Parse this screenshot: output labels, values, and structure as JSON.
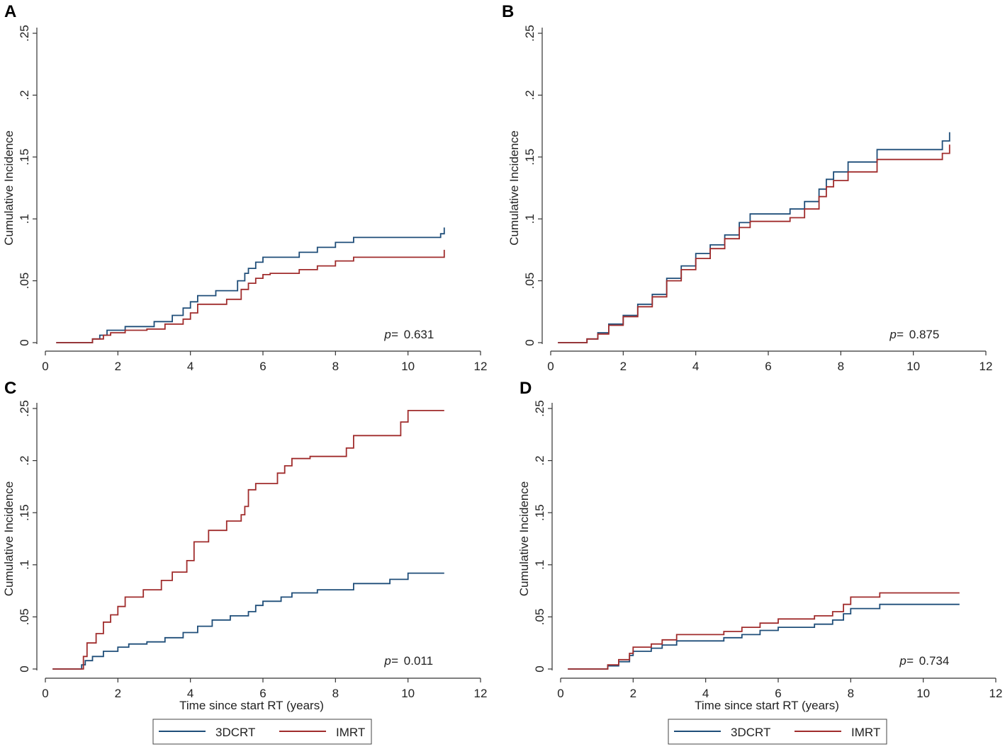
{
  "chart_data": [
    {
      "type": "line",
      "panel": "A",
      "ylabel": "Cumulative Incidence",
      "xlabel": "",
      "xlim": [
        0,
        12
      ],
      "ylim": [
        0,
        0.25
      ],
      "xticks": [
        "0",
        "2",
        "4",
        "6",
        "8",
        "10",
        "12"
      ],
      "yticks": [
        "0",
        ".05",
        ".1",
        ".15",
        ".2",
        ".25"
      ],
      "p_label": "p=",
      "p_value": "0.631",
      "legend": false,
      "series": [
        {
          "name": "3DCRT",
          "color": "#1f4e79",
          "x": [
            0.3,
            1.3,
            1.5,
            1.7,
            2.2,
            2.6,
            3.0,
            3.5,
            3.8,
            4.0,
            4.2,
            4.7,
            5.3,
            5.5,
            5.6,
            5.8,
            6.0,
            6.5,
            7.0,
            7.5,
            8.0,
            8.5,
            9.0,
            10.5,
            10.9,
            11.0
          ],
          "y": [
            0,
            0.003,
            0.006,
            0.01,
            0.013,
            0.013,
            0.017,
            0.022,
            0.028,
            0.033,
            0.038,
            0.042,
            0.05,
            0.056,
            0.06,
            0.065,
            0.069,
            0.069,
            0.073,
            0.077,
            0.081,
            0.085,
            0.085,
            0.085,
            0.088,
            0.093
          ]
        },
        {
          "name": "IMRT",
          "color": "#a02c2c",
          "x": [
            0.3,
            1.3,
            1.6,
            1.8,
            2.2,
            2.8,
            3.3,
            3.8,
            4.0,
            4.2,
            5.0,
            5.4,
            5.6,
            5.8,
            6.0,
            6.2,
            7.0,
            7.5,
            8.0,
            8.5,
            9.0,
            10.9,
            11.0
          ],
          "y": [
            0,
            0.003,
            0.006,
            0.008,
            0.01,
            0.011,
            0.015,
            0.019,
            0.024,
            0.031,
            0.035,
            0.043,
            0.048,
            0.052,
            0.055,
            0.056,
            0.059,
            0.062,
            0.066,
            0.069,
            0.069,
            0.069,
            0.075
          ]
        }
      ]
    },
    {
      "type": "line",
      "panel": "B",
      "ylabel": "Cumulative Incidence",
      "xlabel": "",
      "xlim": [
        0,
        12
      ],
      "ylim": [
        0,
        0.25
      ],
      "xticks": [
        "0",
        "2",
        "4",
        "6",
        "8",
        "10",
        "12"
      ],
      "yticks": [
        "0",
        ".05",
        ".1",
        ".15",
        ".2",
        ".25"
      ],
      "p_label": "p=",
      "p_value": "0.875",
      "legend": false,
      "series": [
        {
          "name": "3DCRT",
          "color": "#1f4e79",
          "x": [
            0.2,
            1.0,
            1.3,
            1.6,
            2.0,
            2.4,
            2.8,
            3.2,
            3.6,
            4.0,
            4.4,
            4.8,
            5.2,
            5.5,
            6.0,
            6.6,
            7.0,
            7.4,
            7.6,
            7.8,
            8.2,
            9.0,
            9.5,
            10.8,
            11.0
          ],
          "y": [
            0,
            0.003,
            0.008,
            0.015,
            0.022,
            0.031,
            0.039,
            0.052,
            0.062,
            0.072,
            0.079,
            0.087,
            0.097,
            0.104,
            0.104,
            0.108,
            0.114,
            0.124,
            0.132,
            0.138,
            0.146,
            0.156,
            0.156,
            0.163,
            0.17
          ]
        },
        {
          "name": "IMRT",
          "color": "#a02c2c",
          "x": [
            0.2,
            1.0,
            1.3,
            1.6,
            2.0,
            2.4,
            2.8,
            3.2,
            3.6,
            4.0,
            4.4,
            4.8,
            5.2,
            5.5,
            6.0,
            6.6,
            7.0,
            7.4,
            7.6,
            7.8,
            8.2,
            9.0,
            9.5,
            10.8,
            11.0
          ],
          "y": [
            0,
            0.003,
            0.007,
            0.014,
            0.021,
            0.029,
            0.037,
            0.05,
            0.059,
            0.068,
            0.076,
            0.084,
            0.093,
            0.098,
            0.098,
            0.101,
            0.108,
            0.118,
            0.126,
            0.131,
            0.138,
            0.148,
            0.148,
            0.153,
            0.16
          ]
        }
      ]
    },
    {
      "type": "line",
      "panel": "C",
      "ylabel": "Cumulative Incidence",
      "xlabel": "Time since start RT (years)",
      "xlim": [
        0,
        12
      ],
      "ylim": [
        0,
        0.25
      ],
      "xticks": [
        "0",
        "2",
        "4",
        "6",
        "8",
        "10",
        "12"
      ],
      "yticks": [
        "0",
        ".05",
        ".1",
        ".15",
        ".2",
        ".25"
      ],
      "p_label": "p=",
      "p_value": "0.011",
      "legend": true,
      "series": [
        {
          "name": "3DCRT",
          "color": "#1f4e79",
          "x": [
            0.2,
            1.0,
            1.1,
            1.3,
            1.6,
            2.0,
            2.3,
            2.8,
            3.3,
            3.8,
            4.2,
            4.6,
            5.1,
            5.6,
            5.8,
            6.0,
            6.5,
            6.8,
            7.5,
            8.5,
            9.5,
            10.0,
            11.0
          ],
          "y": [
            0,
            0.004,
            0.008,
            0.012,
            0.017,
            0.021,
            0.024,
            0.026,
            0.03,
            0.035,
            0.041,
            0.047,
            0.051,
            0.055,
            0.061,
            0.065,
            0.069,
            0.073,
            0.076,
            0.082,
            0.086,
            0.092,
            0.092
          ]
        },
        {
          "name": "IMRT",
          "color": "#a02c2c",
          "x": [
            0.2,
            1.05,
            1.15,
            1.4,
            1.6,
            1.8,
            2.0,
            2.2,
            2.7,
            3.2,
            3.5,
            3.9,
            4.1,
            4.5,
            5.0,
            5.4,
            5.5,
            5.6,
            5.8,
            6.0,
            6.4,
            6.6,
            6.8,
            7.3,
            8.3,
            8.5,
            9.5,
            9.8,
            10.0,
            11.0
          ],
          "y": [
            0,
            0.012,
            0.025,
            0.034,
            0.045,
            0.052,
            0.06,
            0.069,
            0.076,
            0.085,
            0.093,
            0.104,
            0.122,
            0.133,
            0.142,
            0.148,
            0.156,
            0.172,
            0.178,
            0.178,
            0.188,
            0.195,
            0.202,
            0.204,
            0.212,
            0.224,
            0.224,
            0.237,
            0.248,
            0.248
          ]
        }
      ]
    },
    {
      "type": "line",
      "panel": "D",
      "ylabel": "Cumulative Incidence",
      "xlabel": "Time since start RT (years)",
      "xlim": [
        0,
        12
      ],
      "ylim": [
        0,
        0.25
      ],
      "xticks": [
        "0",
        "2",
        "4",
        "6",
        "8",
        "10",
        "12"
      ],
      "yticks": [
        "0",
        ".05",
        ".1",
        ".15",
        ".2",
        ".25"
      ],
      "p_label": "p=",
      "p_value": "0.734",
      "legend": true,
      "series": [
        {
          "name": "3DCRT",
          "color": "#1f4e79",
          "x": [
            0.2,
            1.3,
            1.6,
            1.9,
            2.0,
            2.5,
            2.8,
            3.2,
            4.5,
            5.0,
            5.5,
            6.0,
            7.0,
            7.5,
            7.8,
            8.0,
            8.8,
            11.0
          ],
          "y": [
            0,
            0.003,
            0.007,
            0.013,
            0.017,
            0.02,
            0.023,
            0.027,
            0.03,
            0.033,
            0.037,
            0.04,
            0.043,
            0.047,
            0.053,
            0.058,
            0.062,
            0.062
          ]
        },
        {
          "name": "IMRT",
          "color": "#a02c2c",
          "x": [
            0.2,
            1.3,
            1.6,
            1.9,
            2.0,
            2.5,
            2.8,
            3.2,
            4.5,
            5.0,
            5.5,
            6.0,
            7.0,
            7.5,
            7.8,
            8.0,
            8.8,
            11.0
          ],
          "y": [
            0,
            0.004,
            0.009,
            0.015,
            0.021,
            0.024,
            0.028,
            0.033,
            0.036,
            0.04,
            0.044,
            0.048,
            0.051,
            0.055,
            0.062,
            0.069,
            0.073,
            0.073
          ]
        }
      ]
    }
  ],
  "legend": {
    "items": [
      {
        "name": "3DCRT",
        "color": "#1f4e79"
      },
      {
        "name": "IMRT",
        "color": "#a02c2c"
      }
    ]
  }
}
